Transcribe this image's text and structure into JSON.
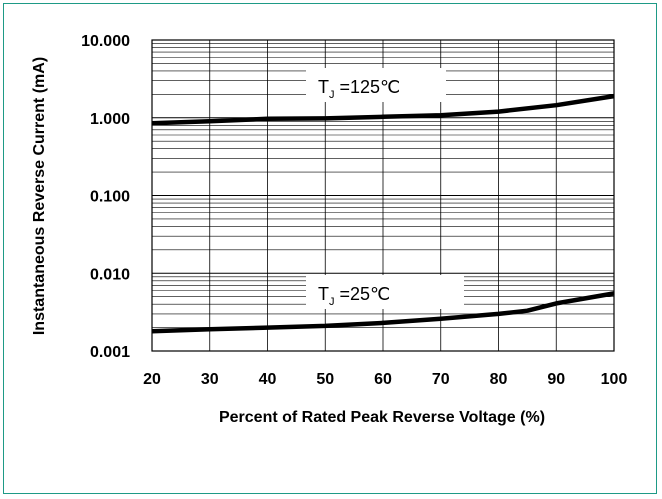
{
  "chart_data": {
    "type": "line",
    "xlabel": "Percent of Rated Peak Reverse Voltage (%)",
    "ylabel": "Instantaneous Reverse Current (mA)",
    "x_ticks": [
      "20",
      "30",
      "40",
      "50",
      "60",
      "70",
      "80",
      "90",
      "100"
    ],
    "y_ticks": [
      "0.001",
      "0.010",
      "0.100",
      "1.000",
      "10.000"
    ],
    "xlim": [
      20,
      100
    ],
    "ylim": [
      0.001,
      10
    ],
    "yscale": "log",
    "grid": true,
    "series": [
      {
        "name": "TJ=125℃",
        "x": [
          20,
          30,
          40,
          50,
          60,
          70,
          80,
          90,
          100
        ],
        "values": [
          0.85,
          0.9,
          0.97,
          0.98,
          1.03,
          1.08,
          1.2,
          1.45,
          1.9
        ]
      },
      {
        "name": "TJ=25℃",
        "x": [
          20,
          30,
          40,
          50,
          60,
          70,
          80,
          85,
          90,
          100
        ],
        "values": [
          0.0018,
          0.0019,
          0.002,
          0.0021,
          0.0023,
          0.0026,
          0.003,
          0.0033,
          0.0041,
          0.0055
        ]
      }
    ],
    "annotations": [
      {
        "main": "T",
        "sub": "J",
        "rest": " =125℃",
        "series": 0
      },
      {
        "main": "T",
        "sub": "J",
        "rest": " =25℃",
        "series": 1
      }
    ]
  }
}
